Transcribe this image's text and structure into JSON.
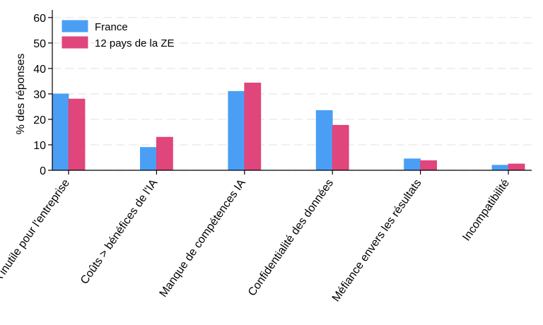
{
  "chart_data": {
    "type": "bar",
    "ylabel": "% des réponses",
    "xlabel": "",
    "title": "",
    "ylim": [
      0,
      63
    ],
    "yticks": [
      0,
      10,
      20,
      30,
      40,
      50,
      60
    ],
    "grid": true,
    "legend_position": "top-left",
    "categories": [
      "IA inutile pour l'entreprise",
      "Coûts > bénéfices de l'IA",
      "Manque de compétences IA",
      "Confidentialité des données",
      "Méfiance envers les résultats",
      "Incompatibilité"
    ],
    "series": [
      {
        "name": "France",
        "color": "#4a9ff5",
        "values": [
          30,
          9,
          31,
          23.5,
          4.5,
          2
        ]
      },
      {
        "name": "12 pays de la ZE",
        "color": "#e0457b",
        "values": [
          28,
          13,
          34.3,
          17.7,
          3.8,
          2.5
        ]
      }
    ]
  }
}
